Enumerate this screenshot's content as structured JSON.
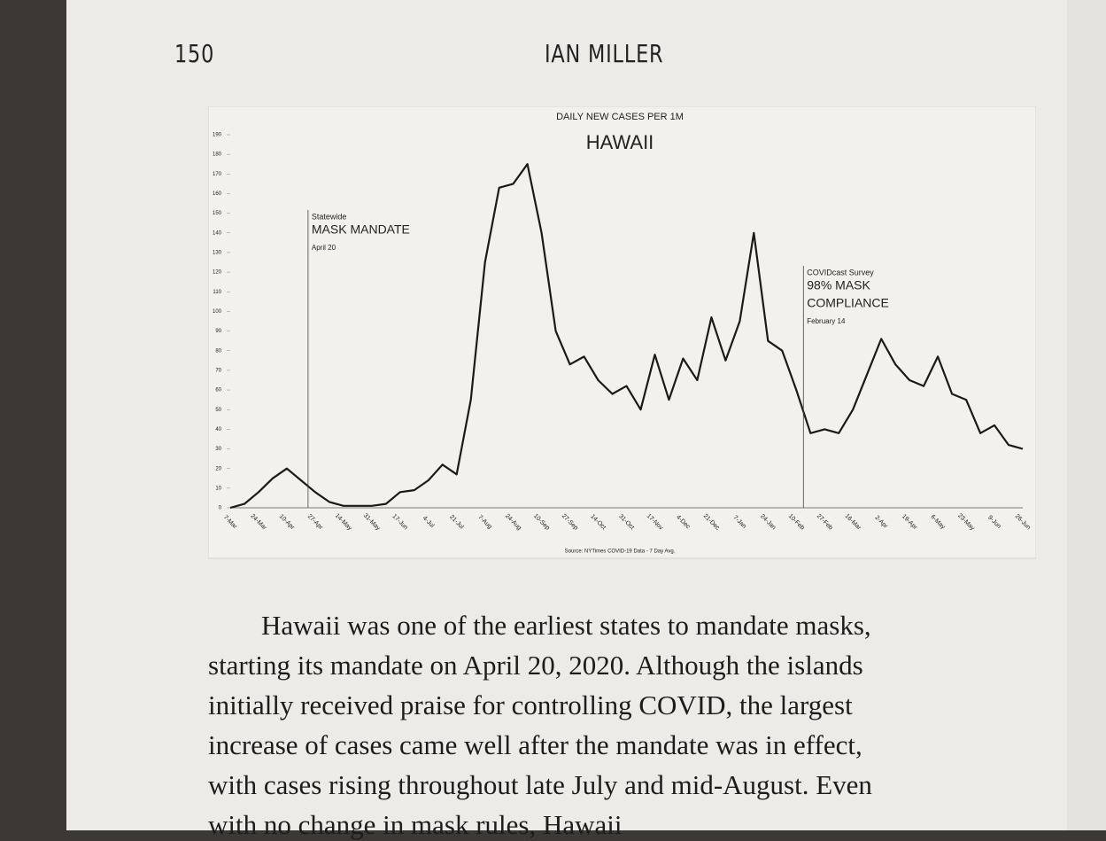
{
  "header": {
    "page_number": "150",
    "author": "IAN MILLER"
  },
  "chart_data": {
    "type": "line",
    "subtitle": "DAILY NEW CASES PER 1M",
    "title": "HAWAII",
    "annotations": [
      {
        "lines": [
          "Statewide",
          "MASK MANDATE",
          "April 20"
        ]
      },
      {
        "lines": [
          "COVIDcast Survey",
          "98% MASK",
          "COMPLIANCE",
          "February 14"
        ]
      }
    ],
    "source": "Source: NYTimes COVID-19 Data - 7 Day Avg.",
    "categories": [
      "7-Mar",
      null,
      "24-Mar",
      null,
      "10-Apr",
      null,
      "27-Apr",
      null,
      "14-May",
      null,
      "31-May",
      null,
      "17-Jun",
      null,
      "4-Jul",
      null,
      "21-Jul",
      null,
      "7-Aug",
      null,
      "24-Aug",
      null,
      "10-Sep",
      null,
      "27-Sep",
      null,
      "14-Oct",
      null,
      "31-Oct",
      null,
      "17-Nov",
      null,
      "4-Dec",
      null,
      "21-Dec",
      null,
      "7-Jan",
      null,
      "24-Jan",
      null,
      "10-Feb",
      null,
      "27-Feb",
      null,
      "16-Mar",
      null,
      "2-Apr",
      null,
      "19-Apr",
      null,
      "6-May",
      null,
      "23-May",
      null,
      "9-Jun",
      null,
      "26-Jun"
    ],
    "values": [
      0,
      2,
      8,
      15,
      20,
      14,
      8,
      3,
      1,
      1,
      1,
      2,
      8,
      9,
      14,
      22,
      17,
      55,
      125,
      163,
      165,
      175,
      140,
      90,
      73,
      77,
      65,
      58,
      62,
      50,
      78,
      55,
      76,
      65,
      97,
      75,
      95,
      140,
      85,
      80,
      60,
      38,
      40,
      38,
      50,
      68,
      86,
      73,
      65,
      62,
      77,
      58,
      55,
      38,
      42,
      32,
      30
    ],
    "color": "#1a1a1a",
    "ylim": [
      0,
      190
    ],
    "yticks": [
      0,
      10,
      20,
      30,
      40,
      50,
      60,
      70,
      80,
      90,
      100,
      110,
      120,
      130,
      140,
      150,
      160,
      170,
      180,
      190
    ]
  },
  "body": {
    "lines": [
      "Hawaii was one of the earliest states to mandate masks,",
      "starting its mandate on April 20, 2020. Although the islands",
      "initially received praise for controlling COVID, the largest",
      "increase of cases came well after the mandate was in effect,",
      "with cases rising throughout late July and mid-August. Even",
      "with no change in mask rules, Hawaii"
    ]
  }
}
